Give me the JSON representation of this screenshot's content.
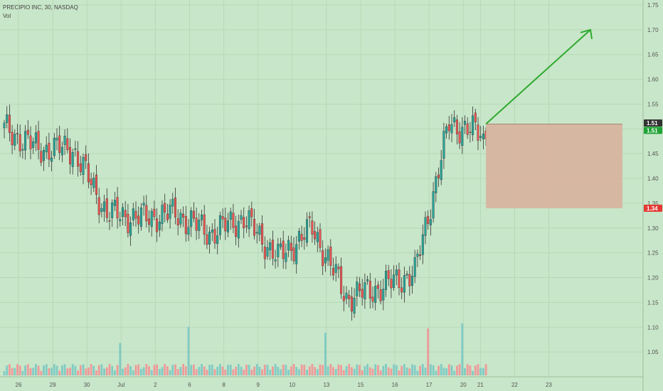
{
  "header": {
    "symbol_line": "PRECIPIO INC, 30, NASDAQ",
    "indicator": "Vol"
  },
  "colors": {
    "background": "#c8e6c9",
    "up": "#26a69a",
    "down": "#ef5350",
    "vol_up": "#80cbc4",
    "vol_down": "#ef9a9a",
    "arrow": "#2eaa2e",
    "stop_box": "#d7b4a0",
    "badge_green": "#1fa335",
    "badge_dark": "#333333",
    "badge_red": "#e53935"
  },
  "price_badges": [
    {
      "label": "1.51",
      "value": 1.512,
      "style": "dark"
    },
    {
      "label": "1.51",
      "value": 1.497,
      "style": "green"
    },
    {
      "label": "1.34",
      "value": 1.34,
      "style": "red"
    }
  ],
  "chart_data": {
    "type": "candlestick",
    "title": "PRECIPIO INC, 30, NASDAQ",
    "y_ticks": [
      "1.05",
      "1.10",
      "1.15",
      "1.20",
      "1.25",
      "1.30",
      "1.35",
      "1.40",
      "1.45",
      "1.50",
      "1.55",
      "1.60",
      "1.65",
      "1.70",
      "1.75"
    ],
    "ylim": [
      1.0,
      1.76
    ],
    "x_ticks": [
      "26",
      "29",
      "30",
      "Jul",
      "2",
      "6",
      "8",
      "9",
      "10",
      "13",
      "15",
      "16",
      "17",
      "20",
      "21",
      "22",
      "23"
    ],
    "session_bars": 13,
    "sessions": [
      {
        "label": "26",
        "close": 1.5
      },
      {
        "label": "29",
        "close": 1.46
      },
      {
        "label": "30",
        "close": 1.46
      },
      {
        "label": "Jul",
        "close": 1.33
      },
      {
        "label": "2",
        "close": 1.32
      },
      {
        "label": "6",
        "close": 1.33
      },
      {
        "label": "8",
        "close": 1.29
      },
      {
        "label": "9",
        "close": 1.32
      },
      {
        "label": "10",
        "close": 1.24
      },
      {
        "label": "13",
        "close": 1.3
      },
      {
        "label": "15",
        "close": 1.16
      },
      {
        "label": "16",
        "close": 1.18
      },
      {
        "label": "17",
        "close": 1.21
      },
      {
        "label": "20",
        "close": 1.51
      },
      {
        "label": "21",
        "close": 1.49
      }
    ],
    "annotations": {
      "projection_arrow": {
        "from": {
          "session": "21",
          "y": 1.51
        },
        "to": {
          "session": "22",
          "y": 1.7
        }
      },
      "stop_zone": {
        "y_top": 1.51,
        "y_bottom": 1.34
      }
    },
    "volume_spikes": [
      "Jul",
      "6",
      "13",
      "17",
      "20"
    ]
  }
}
